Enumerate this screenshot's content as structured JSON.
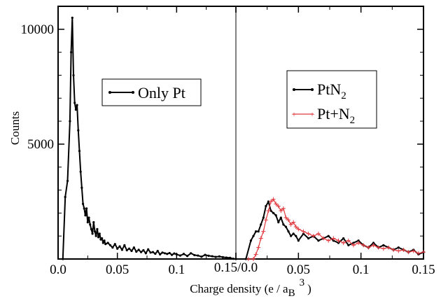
{
  "chart_data": {
    "type": "line",
    "xlabel": "Charge density (e / a",
    "xlabel_sub": "B",
    "xlabel_sup": "3",
    "xlabel_close": ")",
    "ylabel": "Counts",
    "ylim": [
      0,
      11000
    ],
    "yticks": [
      {
        "value": 5000,
        "label": "5000"
      },
      {
        "value": 10000,
        "label": "10000"
      }
    ],
    "panels": [
      {
        "name": "left",
        "xlim": [
          0.0,
          0.15
        ],
        "xticks": [
          {
            "value": 0.0,
            "label": "0.0"
          },
          {
            "value": 0.05,
            "label": "0.05"
          },
          {
            "value": 0.1,
            "label": "0.1"
          }
        ],
        "series": [
          {
            "legend_main": "Only Pt",
            "legend_sub": "",
            "color": "#000000",
            "x": [
              0.004,
              0.006,
              0.008,
              0.01,
              0.011,
              0.012,
              0.013,
              0.014,
              0.015,
              0.016,
              0.017,
              0.018,
              0.019,
              0.02,
              0.021,
              0.022,
              0.023,
              0.024,
              0.025,
              0.026,
              0.027,
              0.028,
              0.029,
              0.03,
              0.031,
              0.032,
              0.033,
              0.034,
              0.035,
              0.036,
              0.037,
              0.038,
              0.039,
              0.04,
              0.042,
              0.044,
              0.046,
              0.048,
              0.05,
              0.052,
              0.054,
              0.056,
              0.058,
              0.06,
              0.062,
              0.064,
              0.066,
              0.068,
              0.07,
              0.072,
              0.074,
              0.076,
              0.078,
              0.08,
              0.082,
              0.084,
              0.086,
              0.088,
              0.09,
              0.092,
              0.094,
              0.096,
              0.098,
              0.1,
              0.103,
              0.106,
              0.109,
              0.112,
              0.115,
              0.118,
              0.121,
              0.124,
              0.127,
              0.13,
              0.133,
              0.136,
              0.139,
              0.142,
              0.145,
              0.148
            ],
            "y": [
              0,
              2700,
              3400,
              6000,
              9000,
              10500,
              8000,
              6800,
              6500,
              6700,
              5600,
              4700,
              3800,
              3100,
              2400,
              2200,
              1900,
              2200,
              1600,
              1800,
              1500,
              1300,
              1100,
              1600,
              1200,
              1000,
              1300,
              950,
              1100,
              850,
              900,
              700,
              800,
              650,
              700,
              600,
              500,
              650,
              450,
              550,
              400,
              600,
              380,
              450,
              350,
              500,
              320,
              400,
              300,
              380,
              250,
              420,
              280,
              300,
              230,
              350,
              200,
              280,
              250,
              220,
              260,
              180,
              240,
              200,
              150,
              220,
              130,
              250,
              170,
              150,
              100,
              180,
              140,
              120,
              90,
              110,
              80,
              60,
              50,
              10
            ]
          }
        ]
      },
      {
        "name": "right",
        "xlim": [
          0.0,
          0.15
        ],
        "xticks": [
          {
            "value": 0.05,
            "label": "0.05"
          },
          {
            "value": 0.1,
            "label": "0.1"
          },
          {
            "value": 0.15,
            "label": "0.15"
          }
        ],
        "series": [
          {
            "legend_main": "PtN",
            "legend_sub": "2",
            "color": "#000000",
            "x": [
              0.0,
              0.008,
              0.012,
              0.014,
              0.016,
              0.018,
              0.02,
              0.022,
              0.024,
              0.026,
              0.028,
              0.03,
              0.032,
              0.034,
              0.036,
              0.038,
              0.04,
              0.042,
              0.044,
              0.046,
              0.048,
              0.05,
              0.054,
              0.058,
              0.062,
              0.066,
              0.07,
              0.074,
              0.078,
              0.082,
              0.086,
              0.09,
              0.094,
              0.098,
              0.102,
              0.106,
              0.11,
              0.114,
              0.118,
              0.122,
              0.126,
              0.13,
              0.134,
              0.138,
              0.142,
              0.146,
              0.15
            ],
            "y": [
              0,
              0,
              800,
              1000,
              1200,
              1200,
              1500,
              1800,
              2300,
              2500,
              2100,
              2000,
              1900,
              1600,
              1800,
              1500,
              1400,
              1200,
              1000,
              1100,
              1000,
              800,
              1100,
              900,
              1000,
              800,
              900,
              1000,
              800,
              700,
              900,
              600,
              700,
              800,
              600,
              500,
              700,
              500,
              600,
              500,
              400,
              500,
              400,
              300,
              400,
              200,
              300
            ]
          },
          {
            "legend_main": "Pt+N",
            "legend_sub": "2",
            "color": "#e0393e",
            "x": [
              0.01,
              0.014,
              0.016,
              0.018,
              0.02,
              0.022,
              0.024,
              0.026,
              0.028,
              0.03,
              0.032,
              0.034,
              0.036,
              0.038,
              0.04,
              0.042,
              0.044,
              0.046,
              0.048,
              0.05,
              0.054,
              0.058,
              0.062,
              0.066,
              0.07,
              0.074,
              0.078,
              0.082,
              0.086,
              0.09,
              0.094,
              0.098,
              0.102,
              0.106,
              0.11,
              0.114,
              0.118,
              0.122,
              0.126,
              0.13,
              0.134,
              0.138,
              0.142,
              0.146,
              0.15
            ],
            "y": [
              0,
              0,
              200,
              500,
              900,
              1200,
              1700,
              2100,
              2500,
              2600,
              2400,
              2300,
              2100,
              2200,
              1800,
              1700,
              1500,
              1600,
              1400,
              1300,
              1200,
              1100,
              1000,
              1100,
              900,
              800,
              900,
              800,
              700,
              800,
              600,
              700,
              600,
              500,
              600,
              500,
              450,
              500,
              400,
              350,
              400,
              300,
              350,
              250,
              300
            ]
          }
        ]
      }
    ],
    "separator_label": "0.15/0.0",
    "grid": false,
    "legend_placement": [
      "left-panel center",
      "right-panel top"
    ]
  }
}
